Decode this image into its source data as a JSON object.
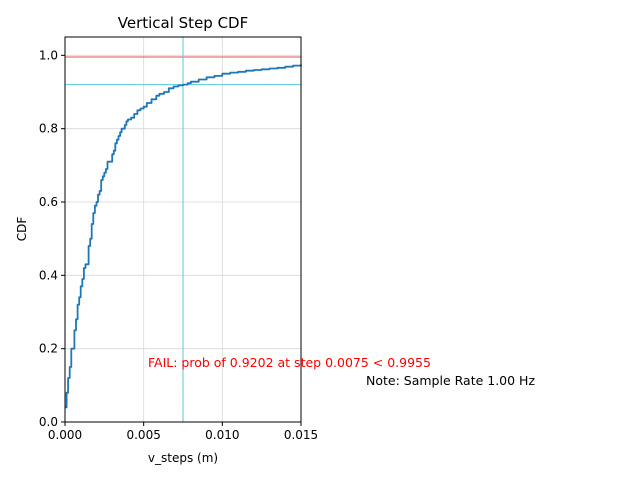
{
  "chart_data": {
    "type": "line",
    "title": "Vertical Step CDF",
    "xlabel": "v_steps (m)",
    "ylabel": "CDF",
    "xlim": [
      0,
      0.015
    ],
    "ylim": [
      0,
      1.05
    ],
    "x_ticks": [
      0,
      0.005,
      0.01,
      0.015
    ],
    "x_tick_labels": [
      "0.000",
      "0.005",
      "0.010",
      "0.015"
    ],
    "y_ticks": [
      0,
      0.2,
      0.4,
      0.6,
      0.8,
      1.0
    ],
    "y_tick_labels": [
      "0.0",
      "0.2",
      "0.4",
      "0.6",
      "0.8",
      "1.0"
    ],
    "grid": true,
    "series": [
      {
        "color": "#1f77b4",
        "x": [
          0,
          0.0001,
          0.0002,
          0.0003,
          0.0004,
          0.0005,
          0.0006,
          0.0007,
          0.0008,
          0.0009,
          0.001,
          0.0011,
          0.0012,
          0.0013,
          0.0014,
          0.0015,
          0.0016,
          0.0017,
          0.0018,
          0.0019,
          0.002,
          0.0021,
          0.0022,
          0.0023,
          0.0024,
          0.0025,
          0.0026,
          0.0027,
          0.0028,
          0.003,
          0.0031,
          0.0032,
          0.0033,
          0.0034,
          0.0035,
          0.0036,
          0.0037,
          0.0038,
          0.0039,
          0.004,
          0.0042,
          0.0044,
          0.0046,
          0.0048,
          0.005,
          0.0052,
          0.0055,
          0.0058,
          0.006,
          0.0063,
          0.0066,
          0.0069,
          0.0072,
          0.0075,
          0.0078,
          0.008,
          0.0085,
          0.009,
          0.0095,
          0.01,
          0.0105,
          0.011,
          0.0115,
          0.012,
          0.0125,
          0.013,
          0.0135,
          0.014,
          0.0145,
          0.015
        ],
        "y": [
          0.04,
          0.08,
          0.12,
          0.15,
          0.2,
          0.2,
          0.25,
          0.28,
          0.32,
          0.34,
          0.37,
          0.39,
          0.42,
          0.43,
          0.43,
          0.48,
          0.5,
          0.54,
          0.57,
          0.59,
          0.6,
          0.62,
          0.63,
          0.66,
          0.67,
          0.68,
          0.69,
          0.71,
          0.71,
          0.73,
          0.74,
          0.76,
          0.77,
          0.78,
          0.79,
          0.8,
          0.8,
          0.81,
          0.82,
          0.825,
          0.83,
          0.84,
          0.85,
          0.855,
          0.86,
          0.87,
          0.88,
          0.89,
          0.895,
          0.9,
          0.91,
          0.915,
          0.918,
          0.9202,
          0.924,
          0.928,
          0.934,
          0.94,
          0.944,
          0.95,
          0.953,
          0.955,
          0.958,
          0.96,
          0.962,
          0.964,
          0.966,
          0.969,
          0.972,
          0.975
        ]
      }
    ],
    "reference_lines": [
      {
        "orientation": "horizontal",
        "value": 0.9955,
        "color": "#e05050"
      },
      {
        "orientation": "horizontal",
        "value": 0.9202,
        "color": "#5ac8d8"
      },
      {
        "orientation": "vertical",
        "value": 0.0075,
        "color": "#5ac8d8"
      }
    ],
    "annotations": [
      {
        "text": "FAIL: prob of 0.9202 at step 0.0075 < 0.9955",
        "color": "#ff0000"
      },
      {
        "text": "Note: Sample Rate 1.00 Hz",
        "color": "#000000"
      }
    ]
  }
}
